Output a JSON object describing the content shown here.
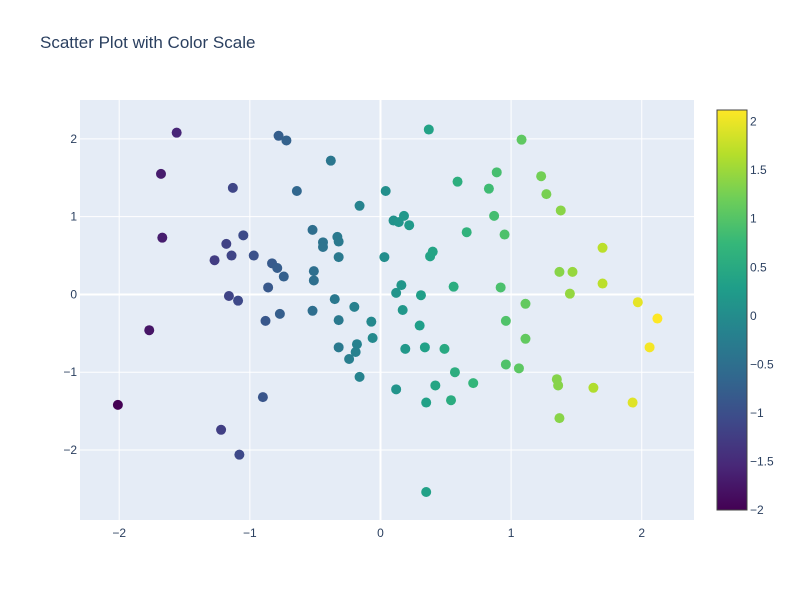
{
  "chart_data": {
    "type": "scatter",
    "title": "Scatter Plot with Color Scale",
    "xlabel": "",
    "ylabel": "",
    "xlim": [
      -2.3,
      2.4
    ],
    "ylim": [
      -2.9,
      2.5
    ],
    "x_ticks": [
      -2,
      -1,
      0,
      1,
      2
    ],
    "y_ticks": [
      -2,
      -1,
      0,
      1,
      2
    ],
    "grid": true,
    "colorscale": "viridis",
    "colorscale_stops": [
      "#440154",
      "#482878",
      "#3e4989",
      "#31688e",
      "#26828e",
      "#1f9e89",
      "#35b779",
      "#6ece58",
      "#b5de2b",
      "#fde725"
    ],
    "color_range": [
      -2.0,
      2.12
    ],
    "colorbar_ticks": [
      "2",
      "1.5",
      "1",
      "0.5",
      "0",
      "−0.5",
      "−1",
      "−1.5",
      "−2"
    ],
    "colorbar_tick_values": [
      2,
      1.5,
      1,
      0.5,
      0,
      -0.5,
      -1,
      -1.5,
      -2
    ],
    "points": [
      {
        "x": -2.01,
        "y": -1.42
      },
      {
        "x": -1.77,
        "y": -0.46
      },
      {
        "x": -1.68,
        "y": 1.55
      },
      {
        "x": -1.67,
        "y": 0.73
      },
      {
        "x": -1.56,
        "y": 2.08
      },
      {
        "x": -1.27,
        "y": 0.44
      },
      {
        "x": -1.22,
        "y": -1.74
      },
      {
        "x": -1.18,
        "y": 0.65
      },
      {
        "x": -1.16,
        "y": -0.02
      },
      {
        "x": -1.14,
        "y": 0.5
      },
      {
        "x": -1.13,
        "y": 1.37
      },
      {
        "x": -1.09,
        "y": -0.08
      },
      {
        "x": -1.08,
        "y": -2.06
      },
      {
        "x": -1.05,
        "y": 0.76
      },
      {
        "x": -0.97,
        "y": 0.5
      },
      {
        "x": -0.9,
        "y": -1.32
      },
      {
        "x": -0.88,
        "y": -0.34
      },
      {
        "x": -0.86,
        "y": 0.09
      },
      {
        "x": -0.83,
        "y": 0.4
      },
      {
        "x": -0.79,
        "y": 0.34
      },
      {
        "x": -0.78,
        "y": 2.04
      },
      {
        "x": -0.77,
        "y": -0.25
      },
      {
        "x": -0.74,
        "y": 0.23
      },
      {
        "x": -0.72,
        "y": 1.98
      },
      {
        "x": -0.64,
        "y": 1.33
      },
      {
        "x": -0.52,
        "y": 0.83
      },
      {
        "x": -0.52,
        "y": -0.21
      },
      {
        "x": -0.51,
        "y": 0.3
      },
      {
        "x": -0.51,
        "y": 0.18
      },
      {
        "x": -0.44,
        "y": 0.67
      },
      {
        "x": -0.44,
        "y": 0.61
      },
      {
        "x": -0.38,
        "y": 1.72
      },
      {
        "x": -0.35,
        "y": -0.06
      },
      {
        "x": -0.33,
        "y": 0.74
      },
      {
        "x": -0.32,
        "y": 0.68
      },
      {
        "x": -0.32,
        "y": 0.48
      },
      {
        "x": -0.32,
        "y": -0.33
      },
      {
        "x": -0.32,
        "y": -0.68
      },
      {
        "x": -0.24,
        "y": -0.83
      },
      {
        "x": -0.2,
        "y": -0.16
      },
      {
        "x": -0.19,
        "y": -0.74
      },
      {
        "x": -0.18,
        "y": -0.64
      },
      {
        "x": -0.16,
        "y": -1.06
      },
      {
        "x": -0.16,
        "y": 1.14
      },
      {
        "x": -0.07,
        "y": -0.35
      },
      {
        "x": -0.06,
        "y": -0.56
      },
      {
        "x": 0.03,
        "y": 0.48
      },
      {
        "x": 0.04,
        "y": 1.33
      },
      {
        "x": 0.1,
        "y": 0.95
      },
      {
        "x": 0.12,
        "y": 0.02
      },
      {
        "x": 0.12,
        "y": -1.22
      },
      {
        "x": 0.14,
        "y": 0.93
      },
      {
        "x": 0.16,
        "y": 0.12
      },
      {
        "x": 0.17,
        "y": -0.2
      },
      {
        "x": 0.18,
        "y": 1.01
      },
      {
        "x": 0.19,
        "y": -0.7
      },
      {
        "x": 0.22,
        "y": 0.89
      },
      {
        "x": 0.3,
        "y": -0.4
      },
      {
        "x": 0.31,
        "y": -0.01
      },
      {
        "x": 0.34,
        "y": -0.68
      },
      {
        "x": 0.35,
        "y": -1.39
      },
      {
        "x": 0.35,
        "y": -2.54
      },
      {
        "x": 0.37,
        "y": 2.12
      },
      {
        "x": 0.38,
        "y": 0.49
      },
      {
        "x": 0.4,
        "y": 0.55
      },
      {
        "x": 0.42,
        "y": -1.17
      },
      {
        "x": 0.49,
        "y": -0.7
      },
      {
        "x": 0.54,
        "y": -1.36
      },
      {
        "x": 0.56,
        "y": 0.1
      },
      {
        "x": 0.57,
        "y": -1.0
      },
      {
        "x": 0.59,
        "y": 1.45
      },
      {
        "x": 0.66,
        "y": 0.8
      },
      {
        "x": 0.71,
        "y": -1.14
      },
      {
        "x": 0.83,
        "y": 1.36
      },
      {
        "x": 0.87,
        "y": 1.01
      },
      {
        "x": 0.89,
        "y": 1.57
      },
      {
        "x": 0.92,
        "y": 0.09
      },
      {
        "x": 0.95,
        "y": 0.77
      },
      {
        "x": 0.96,
        "y": -0.34
      },
      {
        "x": 0.96,
        "y": -0.9
      },
      {
        "x": 1.06,
        "y": -0.95
      },
      {
        "x": 1.08,
        "y": 1.99
      },
      {
        "x": 1.11,
        "y": -0.12
      },
      {
        "x": 1.11,
        "y": -0.57
      },
      {
        "x": 1.23,
        "y": 1.52
      },
      {
        "x": 1.27,
        "y": 1.29
      },
      {
        "x": 1.35,
        "y": -1.09
      },
      {
        "x": 1.36,
        "y": -1.17
      },
      {
        "x": 1.37,
        "y": 0.29
      },
      {
        "x": 1.37,
        "y": -1.59
      },
      {
        "x": 1.38,
        "y": 1.08
      },
      {
        "x": 1.45,
        "y": 0.01
      },
      {
        "x": 1.47,
        "y": 0.29
      },
      {
        "x": 1.63,
        "y": -1.2
      },
      {
        "x": 1.7,
        "y": 0.6
      },
      {
        "x": 1.7,
        "y": 0.14
      },
      {
        "x": 1.93,
        "y": -1.39
      },
      {
        "x": 1.97,
        "y": -0.1
      },
      {
        "x": 2.06,
        "y": -0.68
      },
      {
        "x": 2.12,
        "y": -0.31
      }
    ]
  }
}
